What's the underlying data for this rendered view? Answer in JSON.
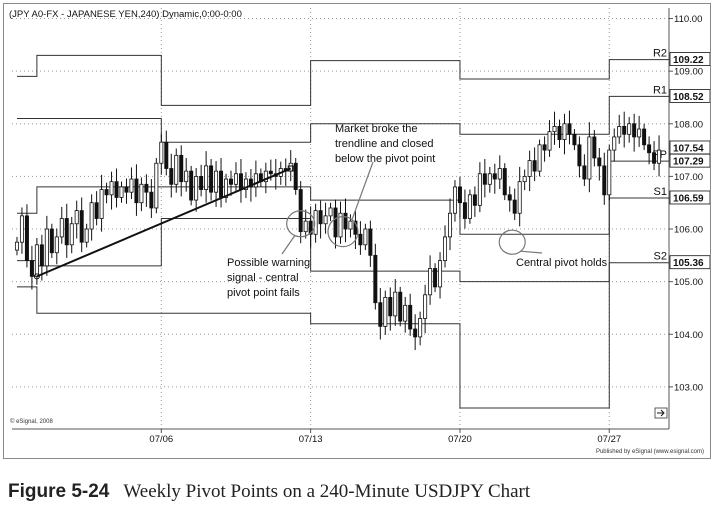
{
  "header": {
    "title": "(JPY A0-FX - JAPANESE YEN,240) Dynamic,0:00-0:00"
  },
  "footer": {
    "copyright": "© eSignal, 2008",
    "publisher": "Published by eSignal (www.esignal.com)"
  },
  "caption": {
    "figure": "Figure 5-24",
    "text": "Weekly Pivot Points on a 240-Minute USDJPY Chart"
  },
  "chart_data": {
    "type": "candlestick",
    "title": "(JPY A0-FX - JAPANESE YEN,240) Dynamic,0:00-0:00",
    "ylim": [
      102.2,
      110.2
    ],
    "yticks": [
      103.0,
      104.0,
      105.0,
      106.0,
      107.0,
      108.0,
      109.0,
      110.0
    ],
    "xlim": [
      0,
      132
    ],
    "xticks": [
      {
        "x": 30,
        "label": "07/06"
      },
      {
        "x": 60,
        "label": "07/13"
      },
      {
        "x": 90,
        "label": "07/20"
      },
      {
        "x": 120,
        "label": "07/27"
      }
    ],
    "grid": true,
    "price_labels": [
      {
        "value": 109.22,
        "text": "109.22"
      },
      {
        "value": 108.52,
        "text": "108.52"
      },
      {
        "value": 107.54,
        "text": "107.54"
      },
      {
        "value": 107.29,
        "text": "107.29"
      },
      {
        "value": 106.59,
        "text": "106.59"
      },
      {
        "value": 105.36,
        "text": "105.36"
      }
    ],
    "pivot_levels": [
      {
        "name": "R2",
        "segments": [
          [
            1,
            5,
            108.9
          ],
          [
            5,
            30,
            109.3
          ],
          [
            30,
            60,
            108.35
          ],
          [
            60,
            90,
            109.2
          ],
          [
            90,
            120,
            108.85
          ],
          [
            120,
            132,
            109.22
          ]
        ]
      },
      {
        "name": "R1",
        "segments": [
          [
            1,
            5,
            108.1
          ],
          [
            5,
            30,
            108.1
          ],
          [
            30,
            60,
            107.65
          ],
          [
            60,
            90,
            108.0
          ],
          [
            90,
            120,
            107.8
          ],
          [
            120,
            132,
            108.52
          ]
        ]
      },
      {
        "name": "PP",
        "segments": [
          [
            1,
            5,
            106.3
          ],
          [
            5,
            30,
            106.8
          ],
          [
            30,
            60,
            106.8
          ],
          [
            60,
            90,
            106.55
          ],
          [
            90,
            120,
            105.9
          ],
          [
            120,
            132,
            107.29
          ]
        ]
      },
      {
        "name": "S1",
        "segments": [
          [
            1,
            5,
            105.4
          ],
          [
            5,
            30,
            105.3
          ],
          [
            30,
            60,
            106.2
          ],
          [
            60,
            90,
            105.2
          ],
          [
            90,
            120,
            105.0
          ],
          [
            120,
            132,
            106.59
          ]
        ]
      },
      {
        "name": "S2",
        "segments": [
          [
            1,
            5,
            104.9
          ],
          [
            5,
            30,
            104.4
          ],
          [
            30,
            60,
            104.4
          ],
          [
            60,
            90,
            104.2
          ],
          [
            90,
            120,
            102.6
          ],
          [
            120,
            132,
            105.36
          ]
        ]
      }
    ],
    "trendline": {
      "from": [
        5,
        105.1
      ],
      "to": [
        56,
        107.15
      ]
    },
    "annotations": [
      {
        "text": "Possible warning signal - central pivot point fails",
        "lines": [
          "Possible warning",
          "signal - central",
          "pivot point fails"
        ],
        "x": 58,
        "y": 106.1
      },
      {
        "text": "Market broke the trendline and closed below the pivot point",
        "lines": [
          "Market broke the",
          "trendline and closed",
          "below the pivot point"
        ],
        "x": 66.5,
        "y": 105.95
      },
      {
        "text": "Central pivot holds",
        "lines": [
          "Central pivot holds"
        ],
        "x": 100.5,
        "y": 105.75
      }
    ],
    "close": [
      105.75,
      106.25,
      105.4,
      105.1,
      105.7,
      105.3,
      106.0,
      105.55,
      105.85,
      106.2,
      105.7,
      106.1,
      106.35,
      105.75,
      106.0,
      106.5,
      106.2,
      106.75,
      106.65,
      106.9,
      106.6,
      106.8,
      106.7,
      106.95,
      106.5,
      106.85,
      106.7,
      106.4,
      107.25,
      107.65,
      107.15,
      106.85,
      107.4,
      106.9,
      107.1,
      106.55,
      107.0,
      106.75,
      107.2,
      106.7,
      107.1,
      106.6,
      106.95,
      106.85,
      107.05,
      106.75,
      106.95,
      106.8,
      107.05,
      106.9,
      107.1,
      107.05,
      107.0,
      107.15,
      107.1,
      107.25,
      106.75,
      105.95,
      106.15,
      105.9,
      106.35,
      106.1,
      106.25,
      106.4,
      105.85,
      106.3,
      106.0,
      106.15,
      105.9,
      105.7,
      106.0,
      105.5,
      104.6,
      104.15,
      104.7,
      104.35,
      104.8,
      104.25,
      104.55,
      104.1,
      103.95,
      104.3,
      104.75,
      105.25,
      104.9,
      105.4,
      105.85,
      106.3,
      106.8,
      106.5,
      106.2,
      106.65,
      106.45,
      107.05,
      106.85,
      107.05,
      106.95,
      107.15,
      106.65,
      106.55,
      106.3,
      106.9,
      107.0,
      107.3,
      107.1,
      107.6,
      107.5,
      107.85,
      107.95,
      107.7,
      108.0,
      107.8,
      107.6,
      107.2,
      106.95,
      107.75,
      107.35,
      107.2,
      106.65,
      107.5,
      107.75,
      107.95,
      107.8,
      108.0,
      107.75,
      107.9,
      107.6,
      107.45,
      107.25,
      107.5
    ]
  }
}
